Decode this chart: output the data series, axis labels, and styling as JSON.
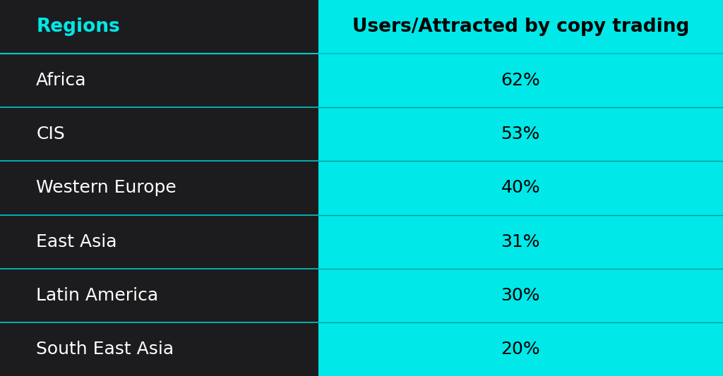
{
  "header_left": "Regions",
  "header_right": "Users/Attracted by copy trading",
  "regions": [
    "Africa",
    "CIS",
    "Western Europe",
    "East Asia",
    "Latin America",
    "South East Asia"
  ],
  "values": [
    "62%",
    "53%",
    "40%",
    "31%",
    "30%",
    "20%"
  ],
  "bg_color": "#1c1c1e",
  "left_col_bg": "#1c1c1e",
  "right_col_bg": "#00e8e8",
  "header_left_color": "#00e8e8",
  "header_right_color": "#000000",
  "region_text_color": "#ffffff",
  "value_text_color": "#000000",
  "divider_color_left": "#00c8c8",
  "divider_color_right": "#009999",
  "col_split": 0.44,
  "header_font_size": 19,
  "cell_font_size": 18,
  "figwidth": 10.24,
  "figheight": 5.33
}
